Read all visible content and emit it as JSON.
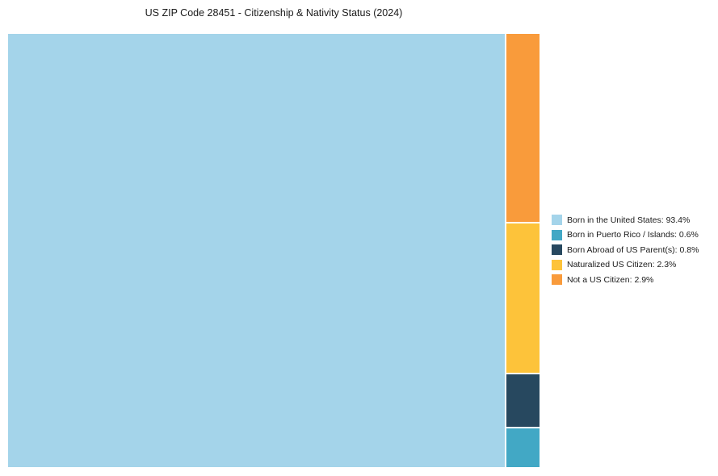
{
  "page": {
    "background_color": "#ffffff"
  },
  "chart_data": {
    "type": "treemap",
    "title": "US ZIP Code 28451 - Citizenship & Nativity Status (2024)",
    "unit": "%",
    "series": [
      {
        "name": "Born in the United States",
        "value": 93.4,
        "color": "#a4d4ea"
      },
      {
        "name": "Born in Puerto Rico / Islands",
        "value": 0.6,
        "color": "#42a8c5"
      },
      {
        "name": "Born Abroad of US Parent(s)",
        "value": 0.8,
        "color": "#27485f"
      },
      {
        "name": "Naturalized US Citizen",
        "value": 2.3,
        "color": "#fdc33a"
      },
      {
        "name": "Not a US Citizen",
        "value": 2.9,
        "color": "#f99b3b"
      }
    ],
    "legend": [
      {
        "label": "Born in the United States: 93.4%",
        "color": "#a4d4ea"
      },
      {
        "label": "Born in Puerto Rico / Islands: 0.6%",
        "color": "#42a8c5"
      },
      {
        "label": "Born Abroad of US Parent(s): 0.8%",
        "color": "#27485f"
      },
      {
        "label": "Naturalized US Citizen: 2.3%",
        "color": "#fdc33a"
      },
      {
        "label": "Not a US Citizen: 2.9%",
        "color": "#f99b3b"
      }
    ],
    "layout": {
      "legend_position": "right",
      "grid": false,
      "main_segment": "Born in the United States",
      "minor_column_order_top_to_bottom": [
        "Not a US Citizen",
        "Naturalized US Citizen",
        "Born Abroad of US Parent(s)",
        "Born in Puerto Rico / Islands"
      ]
    }
  }
}
